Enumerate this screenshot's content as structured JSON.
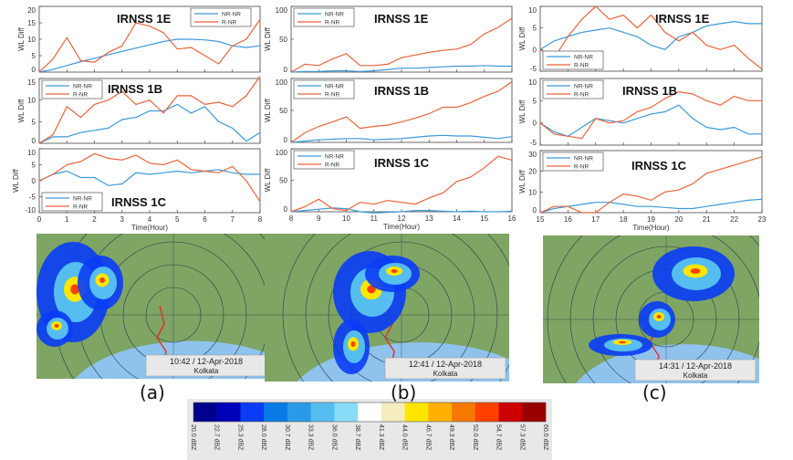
{
  "colors": {
    "nr_nr": "#3a9ad9",
    "r_nr": "#e8643c"
  },
  "chart_data": [
    {
      "type": "line",
      "title": "IRNSS 1E",
      "ylabel": "WL Diff",
      "xlabel": "",
      "xlim": [
        0,
        8
      ],
      "ylim": [
        0,
        20
      ],
      "yticks": [
        0,
        5,
        10,
        15,
        20
      ],
      "xticks": [
        0,
        1,
        2,
        3,
        4,
        5,
        6,
        7,
        8
      ],
      "legend": "top-right",
      "x": [
        0,
        0.5,
        1,
        1.5,
        2,
        2.5,
        3,
        3.5,
        4,
        4.5,
        5,
        5.5,
        6,
        6.5,
        7,
        7.5,
        8
      ],
      "series": [
        {
          "name": "NR-NR",
          "values": [
            0,
            0.8,
            2,
            3.2,
            4.2,
            5.3,
            6.3,
            7.3,
            8.3,
            9.3,
            10,
            10,
            9.8,
            9.3,
            8,
            7.5,
            8
          ]
        },
        {
          "name": "R-NR",
          "values": [
            0,
            4,
            10.5,
            3.5,
            3,
            6,
            8,
            15,
            14,
            12,
            7,
            7.5,
            5,
            2.5,
            8,
            10,
            16
          ]
        }
      ]
    },
    {
      "type": "line",
      "title": "IRNSS 1B",
      "ylabel": "WL Diff",
      "xlabel": "",
      "xlim": [
        0,
        8
      ],
      "ylim": [
        0,
        15
      ],
      "yticks": [
        0,
        5,
        10,
        15
      ],
      "xticks": [
        0,
        1,
        2,
        3,
        4,
        5,
        6,
        7,
        8
      ],
      "legend": "top-left",
      "x": [
        0,
        0.5,
        1,
        1.5,
        2,
        2.5,
        3,
        3.5,
        4,
        4.5,
        5,
        5.5,
        6,
        6.5,
        7,
        7.5,
        8
      ],
      "series": [
        {
          "name": "NR-NR",
          "values": [
            0,
            1.5,
            1.5,
            2.5,
            3,
            3.5,
            5.5,
            6,
            7.5,
            7.5,
            9,
            7,
            8.5,
            5,
            3.5,
            0.5,
            2.5
          ]
        },
        {
          "name": "R-NR",
          "values": [
            0,
            2,
            8.5,
            6,
            9,
            10,
            12,
            9,
            10,
            7,
            11,
            11,
            9,
            9.5,
            8.5,
            11,
            15.5
          ]
        }
      ]
    },
    {
      "type": "line",
      "title": "IRNSS 1C",
      "ylabel": "WL Diff",
      "xlabel": "Time(Hour)",
      "xlim": [
        0,
        8
      ],
      "ylim": [
        -10,
        10
      ],
      "yticks": [
        -10,
        -5,
        0,
        5,
        10
      ],
      "xticks": [
        0,
        1,
        2,
        3,
        4,
        5,
        6,
        7,
        8
      ],
      "legend": "bottom-left",
      "x": [
        0,
        0.5,
        1,
        1.5,
        2,
        2.5,
        3,
        3.5,
        4,
        4.5,
        5,
        5.5,
        6,
        6.5,
        7,
        7.5,
        8
      ],
      "series": [
        {
          "name": "NR-NR",
          "values": [
            0,
            2,
            3,
            1,
            1,
            -1.5,
            -1,
            2.5,
            2,
            2.5,
            3,
            2.5,
            3,
            3.5,
            2.5,
            2,
            2
          ]
        },
        {
          "name": "R-NR",
          "values": [
            0,
            2,
            5,
            6,
            8.5,
            7,
            6.5,
            8,
            5.5,
            5,
            6.5,
            3.5,
            3,
            2.5,
            4.5,
            0,
            -6.5
          ]
        }
      ]
    },
    {
      "type": "line",
      "title": "IRNSS 1E",
      "ylabel": "WL Diff",
      "xlabel": "",
      "xlim": [
        8,
        16
      ],
      "ylim": [
        0,
        100
      ],
      "yticks": [
        0,
        50,
        100
      ],
      "xticks": [
        8,
        9,
        10,
        11,
        12,
        13,
        14,
        15,
        16
      ],
      "legend": "top-left",
      "x": [
        8,
        8.5,
        9,
        9.5,
        10,
        10.5,
        11,
        11.5,
        12,
        12.5,
        13,
        13.5,
        14,
        14.5,
        15,
        15.5,
        16
      ],
      "series": [
        {
          "name": "NR-NR",
          "values": [
            0,
            1,
            1,
            2,
            2,
            1,
            2,
            4,
            6,
            6,
            7,
            8,
            9,
            9,
            10,
            9,
            9
          ]
        },
        {
          "name": "R-NR",
          "values": [
            0,
            12,
            10,
            20,
            28,
            10,
            10,
            12,
            22,
            26,
            30,
            33,
            35,
            42,
            58,
            68,
            82
          ]
        }
      ]
    },
    {
      "type": "line",
      "title": "IRNSS 1B",
      "ylabel": "WL Diff",
      "xlabel": "",
      "xlim": [
        8,
        16
      ],
      "ylim": [
        0,
        100
      ],
      "yticks": [
        0,
        50,
        100
      ],
      "xticks": [
        8,
        9,
        10,
        11,
        12,
        13,
        14,
        15,
        16
      ],
      "legend": "top-left",
      "x": [
        8,
        8.5,
        9,
        9.5,
        10,
        10.5,
        11,
        11.5,
        12,
        12.5,
        13,
        13.5,
        14,
        14.5,
        15,
        15.5,
        16
      ],
      "series": [
        {
          "name": "NR-NR",
          "values": [
            0,
            2,
            4,
            5,
            6,
            6,
            4,
            5,
            6,
            8,
            10,
            11,
            10,
            10,
            8,
            6,
            9
          ]
        },
        {
          "name": "R-NR",
          "values": [
            0,
            15,
            25,
            32,
            40,
            22,
            25,
            27,
            32,
            38,
            45,
            55,
            55,
            62,
            72,
            80,
            95
          ]
        }
      ]
    },
    {
      "type": "line",
      "title": "IRNSS 1C",
      "ylabel": "WL Diff",
      "xlabel": "Time(Hour)",
      "xlim": [
        8,
        16
      ],
      "ylim": [
        0,
        100
      ],
      "yticks": [
        0,
        50,
        100
      ],
      "xticks": [
        8,
        9,
        10,
        11,
        12,
        13,
        14,
        15,
        16
      ],
      "legend": "top-left",
      "x": [
        8,
        8.5,
        9,
        9.5,
        10,
        10.5,
        11,
        11.5,
        12,
        12.5,
        13,
        13.5,
        14,
        14.5,
        15,
        15.5,
        16
      ],
      "series": [
        {
          "name": "NR-NR",
          "values": [
            0,
            2,
            4,
            6,
            5,
            0,
            -2,
            -1,
            0,
            2,
            2,
            1,
            0,
            1,
            0,
            0,
            1
          ]
        },
        {
          "name": "R-NR",
          "values": [
            0,
            8,
            20,
            5,
            2,
            15,
            12,
            18,
            15,
            12,
            22,
            30,
            48,
            55,
            70,
            88,
            82
          ]
        }
      ]
    },
    {
      "type": "line",
      "title": "IRNSS 1E",
      "ylabel": "WL Diff",
      "xlabel": "",
      "xlim": [
        15,
        23
      ],
      "ylim": [
        -5,
        10
      ],
      "yticks": [
        -5,
        0,
        5,
        10
      ],
      "xticks": [
        15,
        16,
        17,
        18,
        19,
        20,
        21,
        22,
        23
      ],
      "legend": "bottom-left",
      "x": [
        15,
        15.5,
        16,
        16.5,
        17,
        17.5,
        18,
        18.5,
        19,
        19.5,
        20,
        20.5,
        21,
        21.5,
        22,
        22.5,
        23
      ],
      "series": [
        {
          "name": "NR-NR",
          "values": [
            0,
            2,
            3,
            4,
            4.5,
            5,
            4,
            3,
            1,
            0,
            3,
            4,
            5.5,
            6,
            6.5,
            6,
            6
          ]
        },
        {
          "name": "R-NR",
          "values": [
            0,
            -2,
            3,
            7,
            10,
            7,
            8,
            5,
            8,
            4,
            2,
            4,
            1,
            0,
            1,
            -2,
            -4.5
          ]
        }
      ]
    },
    {
      "type": "line",
      "title": "IRNSS 1B",
      "ylabel": "WL Diff",
      "xlabel": "",
      "xlim": [
        15,
        23
      ],
      "ylim": [
        -5,
        10
      ],
      "yticks": [
        -5,
        0,
        5,
        10
      ],
      "xticks": [
        15,
        16,
        17,
        18,
        19,
        20,
        21,
        22,
        23
      ],
      "legend": "top-left",
      "x": [
        15,
        15.5,
        16,
        16.5,
        17,
        17.5,
        18,
        18.5,
        19,
        19.5,
        20,
        20.5,
        21,
        21.5,
        22,
        22.5,
        23
      ],
      "series": [
        {
          "name": "NR-NR",
          "values": [
            0,
            -2,
            -3,
            -1,
            1,
            0.5,
            0,
            1,
            2,
            2.5,
            4,
            1,
            -1,
            -1.5,
            -1,
            -2.5,
            -2.5
          ]
        },
        {
          "name": "R-NR",
          "values": [
            0,
            -2.5,
            -3,
            -3.5,
            1,
            0,
            0.5,
            2.5,
            3.5,
            5.5,
            7,
            6.5,
            5,
            4,
            6,
            5,
            5
          ]
        }
      ]
    },
    {
      "type": "line",
      "title": "IRNSS 1C",
      "ylabel": "WL Diff",
      "xlabel": "Time(Hour)",
      "xlim": [
        15,
        23
      ],
      "ylim": [
        0,
        30
      ],
      "yticks": [
        0,
        10,
        20,
        30
      ],
      "xticks": [
        15,
        16,
        17,
        18,
        19,
        20,
        21,
        22,
        23
      ],
      "legend": "top-left",
      "x": [
        15,
        15.5,
        16,
        16.5,
        17,
        17.5,
        18,
        18.5,
        19,
        19.5,
        20,
        20.5,
        21,
        21.5,
        22,
        22.5,
        23
      ],
      "series": [
        {
          "name": "NR-NR",
          "values": [
            0,
            2,
            3,
            4,
            5,
            5,
            4,
            3,
            3,
            2.5,
            2,
            2,
            3,
            4,
            5,
            6,
            6.5
          ]
        },
        {
          "name": "R-NR",
          "values": [
            0,
            3,
            3,
            0,
            0,
            5,
            9,
            8,
            6,
            10,
            11,
            14,
            19,
            21,
            23,
            25,
            27
          ]
        }
      ]
    }
  ],
  "radar": [
    {
      "label": "(a)",
      "timestamp": "10:42 / 12-Apr-2018",
      "location": "Kolkata"
    },
    {
      "label": "(b)",
      "timestamp": "12:41 / 12-Apr-2018",
      "location": "Kolkata"
    },
    {
      "label": "(c)",
      "timestamp": "14:31 / 12-Apr-2018",
      "location": "Kolkata"
    }
  ],
  "colorbar": {
    "labels": [
      "20.0 dBZ",
      "22.7 dBZ",
      "25.3 dBZ",
      "28.0 dBZ",
      "30.7 dBZ",
      "33.3 dBZ",
      "36.0 dBZ",
      "38.7 dBZ",
      "41.3 dBZ",
      "44.0 dBZ",
      "46.7 dBZ",
      "49.3 dBZ",
      "52.0 dBZ",
      "54.7 dBZ",
      "57.3 dBZ",
      "60.0 dBZ"
    ],
    "colors": [
      "#00008f",
      "#0000b8",
      "#0a3cf5",
      "#0a7ae6",
      "#2a9ae8",
      "#55bdf0",
      "#88dcf8",
      "#ffffff",
      "#f5ecc0",
      "#ffe600",
      "#ffb000",
      "#f57800",
      "#ff4000",
      "#cc0000",
      "#990000"
    ]
  }
}
